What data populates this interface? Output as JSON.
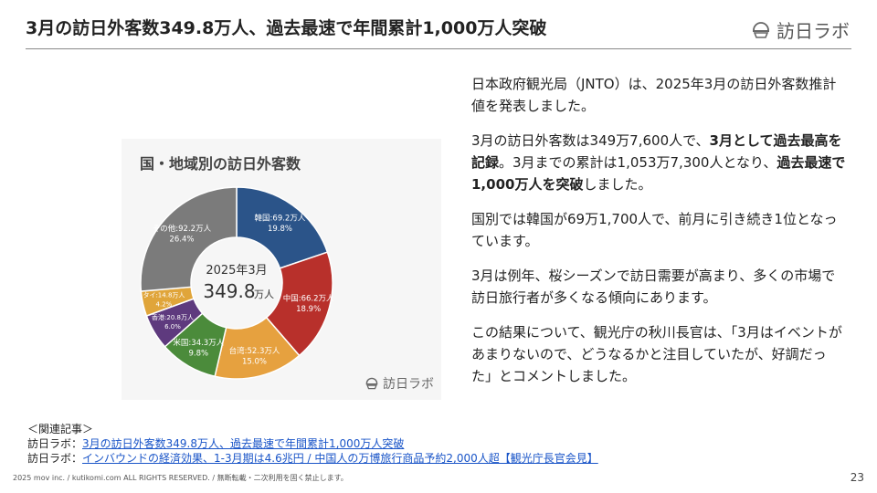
{
  "header": {
    "title": "3月の訪日外客数349.8万人、過去最速で年間累計1,000万人突破",
    "logo_text": "訪日ラボ"
  },
  "chart_data": {
    "type": "pie",
    "title": "国・地域別の訪日外客数",
    "center_label": "2025年3月",
    "center_value": "349.8",
    "center_unit": "万人",
    "watermark": "訪日ラボ",
    "slices": [
      {
        "name": "韓国",
        "value_text": "69.2万人",
        "percent": 19.8,
        "pct_text": "19.8%",
        "color": "#2b5489",
        "label_color": "#ffffff"
      },
      {
        "name": "中国",
        "value_text": "66.2万人",
        "percent": 18.9,
        "pct_text": "18.9%",
        "color": "#b8302b",
        "label_color": "#ffffff"
      },
      {
        "name": "台湾",
        "value_text": "52.3万人",
        "percent": 15.0,
        "pct_text": "15.0%",
        "color": "#e6a13f",
        "label_color": "#ffffff"
      },
      {
        "name": "米国",
        "value_text": "34.3万人",
        "percent": 9.8,
        "pct_text": "9.8%",
        "color": "#4b8b3b",
        "label_color": "#ffffff"
      },
      {
        "name": "香港",
        "value_text": "20.8万人",
        "percent": 6.0,
        "pct_text": "6.0%",
        "color": "#5e3a7e",
        "label_color": "#ffffff"
      },
      {
        "name": "タイ",
        "value_text": "14.8万人",
        "percent": 4.2,
        "pct_text": "4.2%",
        "color": "#e0a53a",
        "label_color": "#ffffff"
      },
      {
        "name": "その他",
        "value_text": "92.2万人",
        "percent": 26.4,
        "pct_text": "26.4%",
        "color": "#7b7b7b",
        "label_color": "#ffffff"
      }
    ]
  },
  "body": {
    "p1": "日本政府観光局（JNTO）は、2025年3月の訪日外客数推計値を発表しました。",
    "p2_a": "3月の訪日外客数は349万7,600人で、",
    "p2_b": "3月として過去最高を記録",
    "p2_c": "。3月までの累計は1,053万7,300人となり、",
    "p2_d": "過去最速で1,000万人を突破",
    "p2_e": "しました。",
    "p3": "国別では韓国が69万1,700人で、前月に引き続き1位となっています。",
    "p4": "3月は例年、桜シーズンで訪日需要が高まり、多くの市場で訪日旅行者が多くなる傾向にあります。",
    "p5": "この結果について、観光庁の秋川長官は、「3月はイベントがあまりないので、どうなるかと注目していたが、好調だった」とコメントしました。"
  },
  "related": {
    "heading": "＜関連記事＞",
    "items": [
      {
        "prefix": "訪日ラボ：",
        "link": "3月の訪日外客数349.8万人、過去最速で年間累計1,000万人突破"
      },
      {
        "prefix": "訪日ラボ：",
        "link": "インバウンドの経済効果、1-3月期は4.6兆円 / 中国人の万博旅行商品予約2,000人超【観光庁長官会見】"
      }
    ]
  },
  "footer": {
    "copyright": "2025 mov inc. / kutikomi.com ALL RIGHTS RESERVED. / 無断転載・二次利用を固く禁止します。",
    "page_number": "23"
  }
}
